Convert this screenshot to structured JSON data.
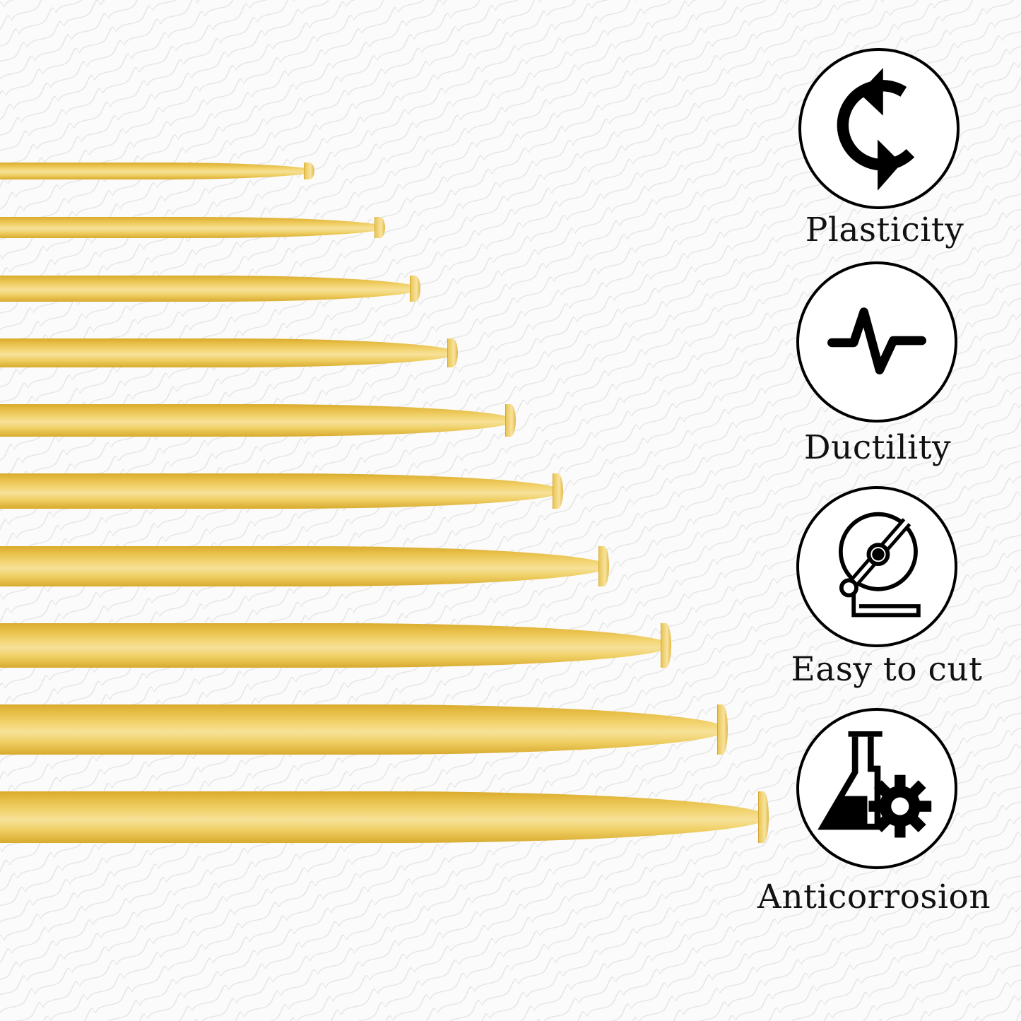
{
  "product": {
    "rod_color": "#e8c04a",
    "rod_count": 10
  },
  "features": [
    {
      "label": "Plasticity",
      "icon": "refresh-arrows-icon"
    },
    {
      "label": "Ductility",
      "icon": "pulse-wave-icon"
    },
    {
      "label": "Easy to cut",
      "icon": "cutting-saw-icon"
    },
    {
      "label": "Anticorrosion",
      "icon": "flask-gear-icon"
    }
  ]
}
